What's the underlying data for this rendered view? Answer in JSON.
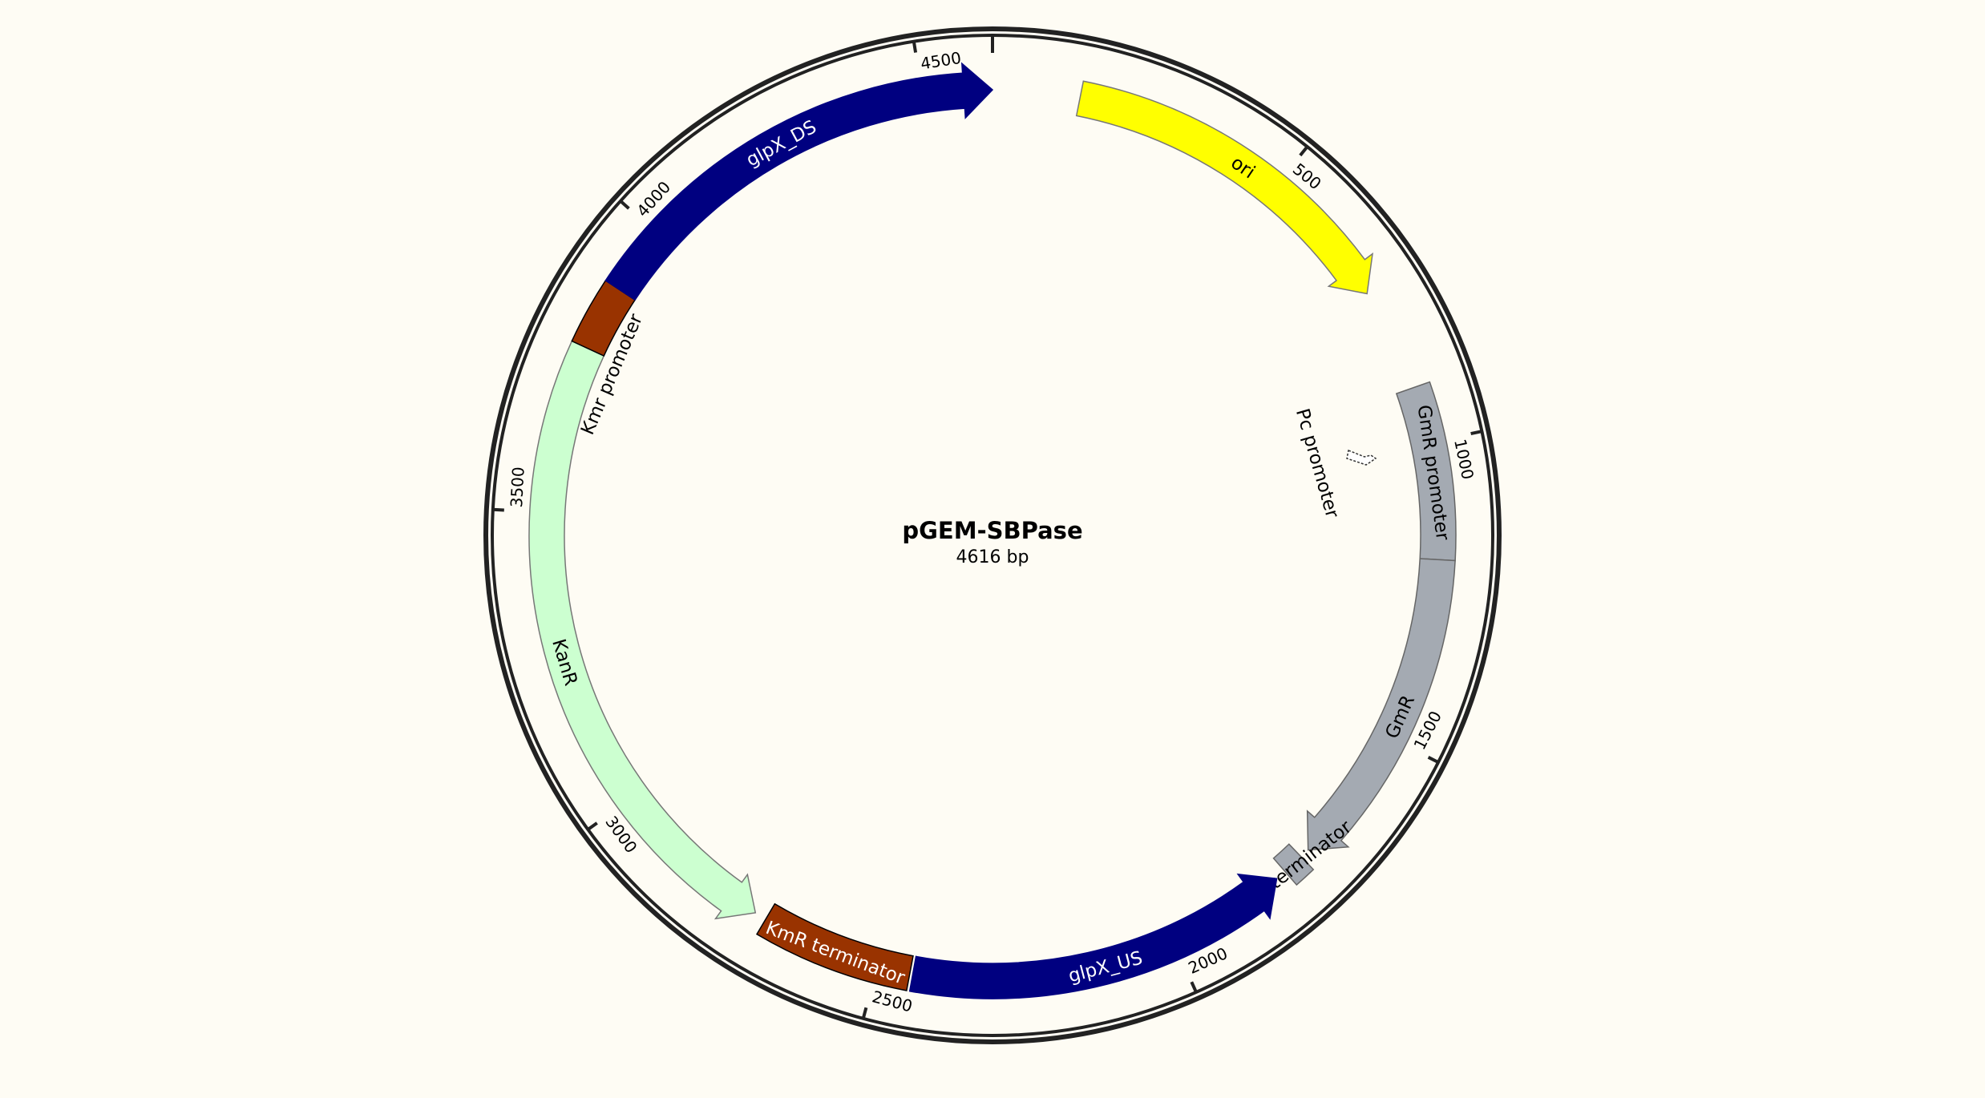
{
  "plasmid": {
    "name": "pGEM-SBPase",
    "length_label": "4616 bp",
    "length_bp": 4616
  },
  "ticks": [
    {
      "bp": 500,
      "label": "500"
    },
    {
      "bp": 1000,
      "label": "1000"
    },
    {
      "bp": 1500,
      "label": "1500"
    },
    {
      "bp": 2000,
      "label": "2000"
    },
    {
      "bp": 2500,
      "label": "2500"
    },
    {
      "bp": 3000,
      "label": "3000"
    },
    {
      "bp": 3500,
      "label": "3500"
    },
    {
      "bp": 4000,
      "label": "4000"
    },
    {
      "bp": 4500,
      "label": "4500"
    }
  ],
  "features": [
    {
      "id": "ori",
      "label": "ori",
      "start": 145,
      "end": 733,
      "fill": "#ffff00",
      "stroke": "#777777",
      "text_color": "#000000",
      "direction": "cw",
      "label_place": "inside"
    },
    {
      "id": "gmr-promoter",
      "label": "GmR promoter",
      "start": 906,
      "end": 1194,
      "fill": "#a4aab2",
      "stroke": "#666666",
      "text_color": "#000000",
      "direction": "none",
      "label_place": "inside"
    },
    {
      "id": "gmr",
      "label": "GmR",
      "start": 1194,
      "end": 1730,
      "fill": "#a4aab2",
      "stroke": "#666666",
      "text_color": "#000000",
      "direction": "cw",
      "label_place": "inside"
    },
    {
      "id": "gmr-terminator",
      "label": "GmR terminator",
      "start": 1746,
      "end": 1782,
      "fill": "#a4aab2",
      "stroke": "#666666",
      "text_color": "#000000",
      "direction": "none",
      "label_place": "outside-left"
    },
    {
      "id": "glpx-us",
      "label": "glpX_US",
      "start": 1800,
      "end": 2440,
      "fill": "#000080",
      "stroke": "#000080",
      "text_color": "#ffffff",
      "direction": "ccw",
      "label_place": "inside"
    },
    {
      "id": "kmr-terminator",
      "label": "KmR terminator",
      "start": 2445,
      "end": 2700,
      "fill": "#993300",
      "stroke": "#000000",
      "text_color": "#ffffff",
      "direction": "none",
      "label_place": "inside"
    },
    {
      "id": "kanr",
      "label": "KanR",
      "start": 2720,
      "end": 3780,
      "fill": "#ccffd0",
      "stroke": "#777777",
      "text_color": "#000000",
      "direction": "ccw",
      "label_place": "inside"
    },
    {
      "id": "kmr-promoter",
      "label": "Kmr promoter",
      "start": 3780,
      "end": 3890,
      "fill": "#993300",
      "stroke": "#000000",
      "text_color": "#000000",
      "direction": "none",
      "label_place": "outside-right"
    },
    {
      "id": "glpx-ds",
      "label": "glpX_DS",
      "start": 3890,
      "end": 4616,
      "fill": "#000080",
      "stroke": "#000080",
      "text_color": "#ffffff",
      "direction": "cw",
      "label_place": "inside"
    }
  ],
  "markers": [
    {
      "id": "pc-promoter",
      "label": "Pc promoter",
      "bp": 950
    }
  ]
}
